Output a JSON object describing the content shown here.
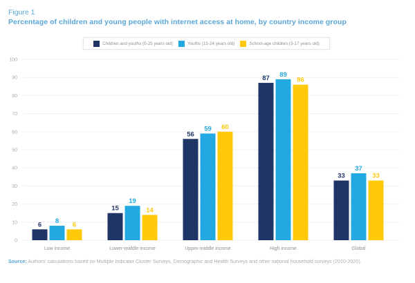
{
  "figure_label": "Figure 1",
  "source_label": "Source:",
  "source_text": "Authors' calculations based on Multiple Indicator Cluster Surveys, Demographic and Health Surveys and other national household surveys (2010-2020).",
  "chart_data": {
    "type": "bar",
    "title": "Percentage of children and young people with internet access at home, by country income group",
    "xlabel": "",
    "ylabel": "",
    "ylim": [
      0,
      100
    ],
    "yticks": [
      0,
      10,
      20,
      30,
      40,
      50,
      60,
      70,
      80,
      90,
      100
    ],
    "grid": true,
    "legend_position": "top-center",
    "categories": [
      "Low income",
      "Lower-middle income",
      "Upper-middle income",
      "High income",
      "Global"
    ],
    "series": [
      {
        "name": "Children and youths (0-25 years old)",
        "color": "#1f3566",
        "values": [
          6,
          15,
          56,
          87,
          33
        ]
      },
      {
        "name": "Youths (15-24 years old)",
        "color": "#22a9e1",
        "values": [
          8,
          19,
          59,
          89,
          37
        ]
      },
      {
        "name": "School-age children (3-17 years old)",
        "color": "#ffc90b",
        "values": [
          6,
          14,
          60,
          86,
          33
        ]
      }
    ]
  }
}
